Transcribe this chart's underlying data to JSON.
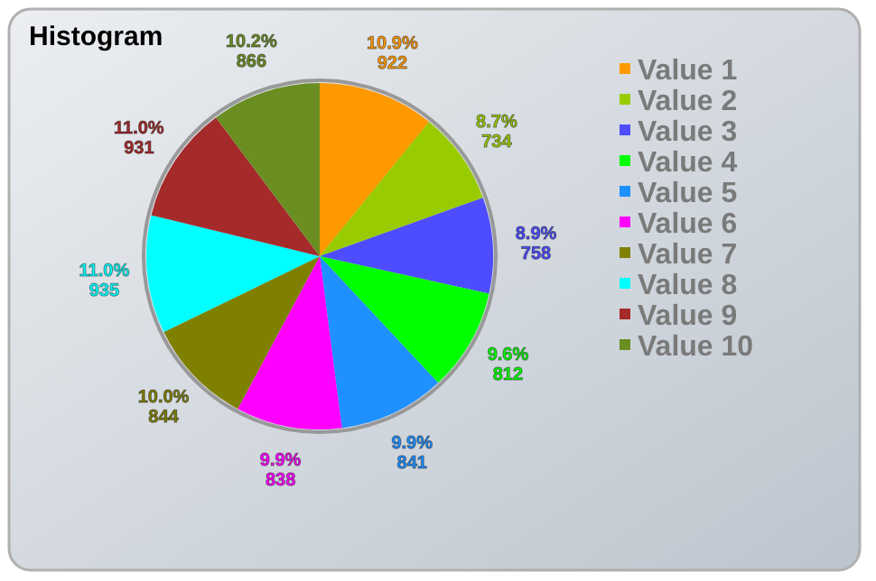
{
  "chart_data": {
    "type": "pie",
    "title": "Histogram",
    "categories": [
      "Value 1",
      "Value 2",
      "Value 3",
      "Value 4",
      "Value 5",
      "Value 6",
      "Value 7",
      "Value 8",
      "Value 9",
      "Value 10"
    ],
    "values": [
      922,
      734,
      758,
      812,
      841,
      838,
      844,
      935,
      931,
      866
    ],
    "colors": [
      "#ff9900",
      "#99cc00",
      "#4d4dff",
      "#00ff00",
      "#1e90ff",
      "#ff00ff",
      "#808000",
      "#00ffff",
      "#a52a2a",
      "#6b8e23"
    ],
    "value_labels": [
      "10.9%\n922",
      "8.7%\n734",
      "8.9%\n758",
      "9.6%\n812",
      "9.9%\n841",
      "9.9%\n838",
      "10.0%\n844",
      "11.0%\n935",
      "11.0%\n931",
      "10.2%\n866"
    ],
    "legend": "top right"
  }
}
